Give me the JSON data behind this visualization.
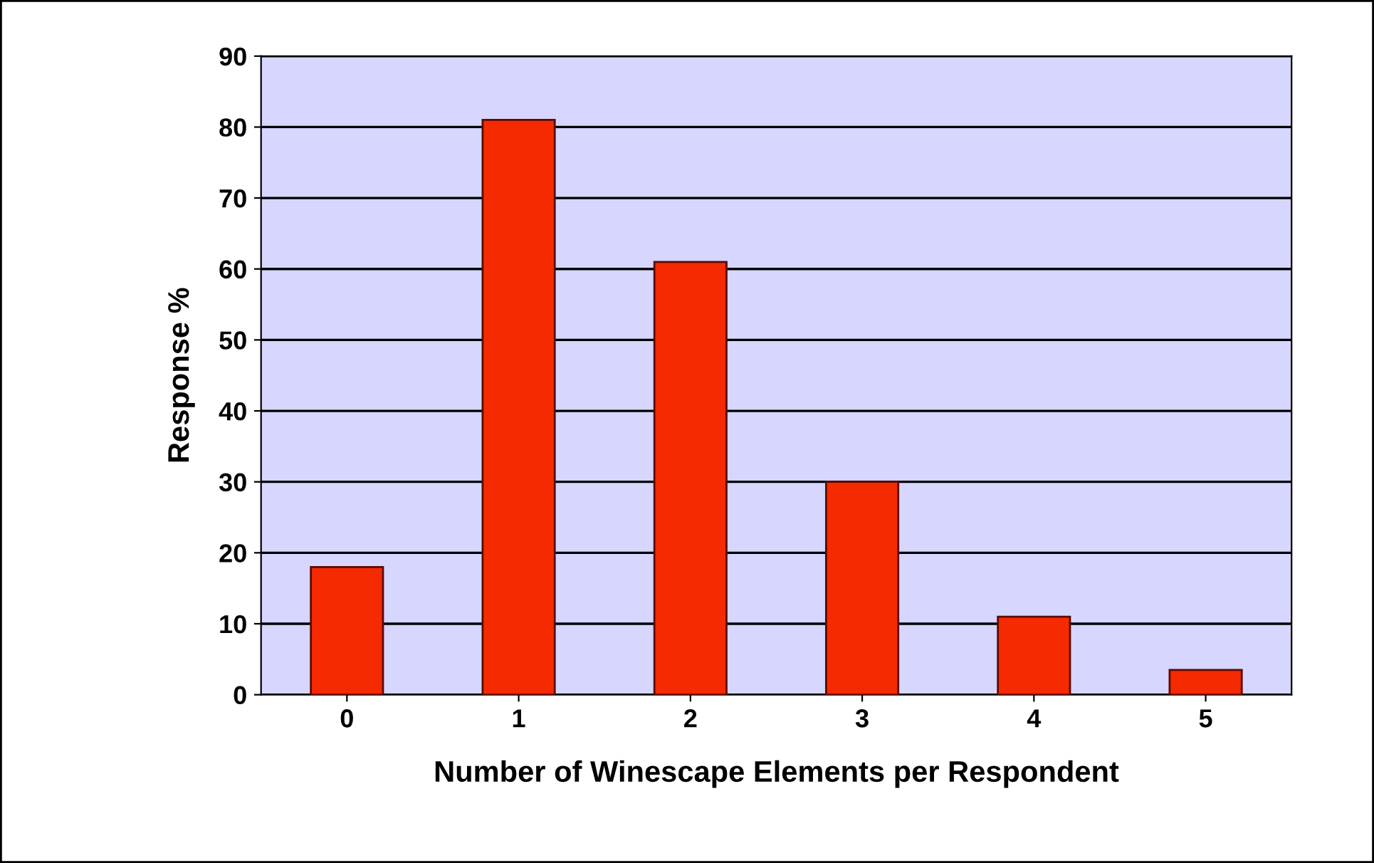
{
  "chart_data": {
    "type": "bar",
    "xlabel": "Number of Winescape Elements per Respondent",
    "ylabel": "Response %",
    "categories": [
      "0",
      "1",
      "2",
      "3",
      "4",
      "5"
    ],
    "values": [
      18,
      81,
      61,
      30,
      11,
      3.5
    ],
    "color": "#f52a00",
    "ylim": [
      0,
      90
    ],
    "yticks": [
      0,
      10,
      20,
      30,
      40,
      50,
      60,
      70,
      80,
      90
    ],
    "grid": "y"
  }
}
